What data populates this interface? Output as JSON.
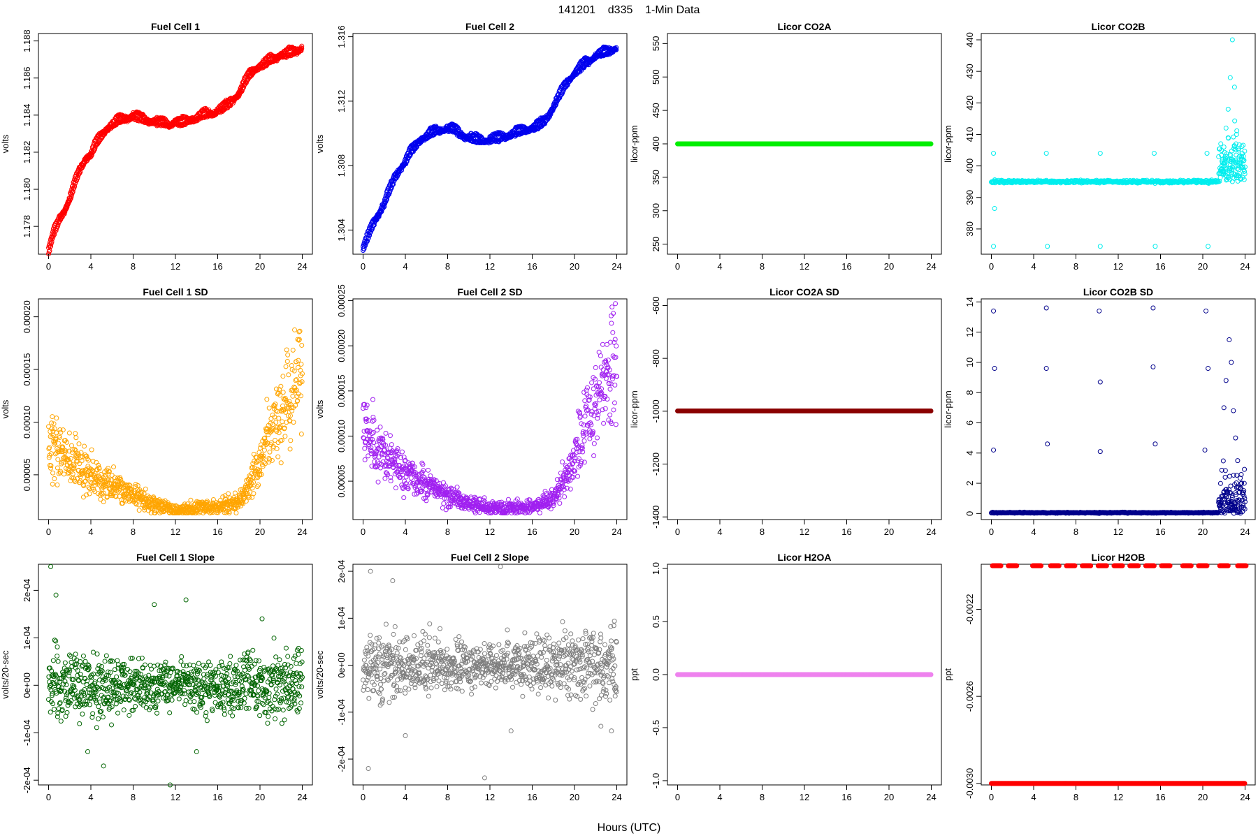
{
  "figure": {
    "suptitle": "141201    d335    1-Min Data",
    "xlabel": "Hours (UTC)"
  },
  "chart_data": [
    {
      "id": "p1",
      "type": "scatter",
      "title": "Fuel Cell 1",
      "xlabel": "",
      "ylabel": "volts",
      "xlim": [
        0,
        24
      ],
      "xticks": [
        0,
        4,
        8,
        12,
        16,
        20,
        24
      ],
      "ylim": [
        1.1765,
        1.1884
      ],
      "yticks": [
        1.178,
        1.18,
        1.182,
        1.184,
        1.186,
        1.188
      ],
      "ytick_labels": [
        "1.178",
        "1.180",
        "1.182",
        "1.184",
        "1.186",
        "1.188"
      ],
      "color": "#ff0000",
      "filled": false,
      "series": [
        {
          "x": [
            0,
            0.5,
            1,
            1.5,
            2,
            2.5,
            3,
            3.5,
            4,
            4.5,
            5,
            5.5,
            6,
            6.5,
            7,
            7.5,
            8,
            8.5,
            9,
            9.5,
            10,
            10.5,
            11,
            11.5,
            12,
            12.5,
            13,
            13.5,
            14,
            14.5,
            15,
            15.5,
            16,
            16.5,
            17,
            17.5,
            18,
            18.5,
            19,
            19.5,
            20,
            20.5,
            21,
            21.5,
            22,
            22.5,
            23,
            23.5,
            24
          ],
          "y": [
            1.1768,
            1.1778,
            1.1785,
            1.179,
            1.1796,
            1.1805,
            1.1812,
            1.1818,
            1.182,
            1.1826,
            1.183,
            1.1834,
            1.1836,
            1.1838,
            1.1839,
            1.184,
            1.1841,
            1.184,
            1.1839,
            1.1838,
            1.1838,
            1.1837,
            1.1837,
            1.1836,
            1.1838,
            1.1837,
            1.1838,
            1.1839,
            1.184,
            1.1841,
            1.1842,
            1.1842,
            1.1844,
            1.1845,
            1.1847,
            1.185,
            1.1853,
            1.1858,
            1.1863,
            1.1866,
            1.1868,
            1.1869,
            1.1871,
            1.1872,
            1.1874,
            1.1874,
            1.1875,
            1.1876,
            1.1878
          ]
        }
      ]
    },
    {
      "id": "p2",
      "type": "scatter",
      "title": "Fuel Cell 2",
      "xlabel": "",
      "ylabel": "volts",
      "xlim": [
        0,
        24
      ],
      "xticks": [
        0,
        4,
        8,
        12,
        16,
        20,
        24
      ],
      "ylim": [
        1.3025,
        1.3162
      ],
      "yticks": [
        1.304,
        1.308,
        1.312,
        1.316
      ],
      "ytick_labels": [
        "1.304",
        "1.308",
        "1.312",
        "1.316"
      ],
      "color": "#0000ee",
      "filled": false,
      "series": [
        {
          "x": [
            0,
            0.5,
            1,
            1.5,
            2,
            2.5,
            3,
            3.5,
            4,
            4.5,
            5,
            5.5,
            6,
            6.5,
            7,
            7.5,
            8,
            8.5,
            9,
            9.5,
            10,
            10.5,
            11,
            11.5,
            12,
            12.5,
            13,
            13.5,
            14,
            14.5,
            15,
            15.5,
            16,
            16.5,
            17,
            17.5,
            18,
            18.5,
            19,
            19.5,
            20,
            20.5,
            21,
            21.5,
            22,
            22.5,
            23,
            23.5,
            24
          ],
          "y": [
            1.303,
            1.3038,
            1.3046,
            1.3052,
            1.3058,
            1.3066,
            1.3074,
            1.308,
            1.3084,
            1.309,
            1.3094,
            1.3098,
            1.31,
            1.3102,
            1.3103,
            1.3104,
            1.3105,
            1.3104,
            1.3102,
            1.31,
            1.3099,
            1.3098,
            1.3097,
            1.3097,
            1.3098,
            1.3098,
            1.3099,
            1.31,
            1.3101,
            1.3102,
            1.3103,
            1.3104,
            1.3105,
            1.3106,
            1.3108,
            1.3112,
            1.3118,
            1.3124,
            1.313,
            1.3135,
            1.3139,
            1.3142,
            1.3145,
            1.3147,
            1.315,
            1.3151,
            1.3152,
            1.3153,
            1.3155
          ]
        }
      ]
    },
    {
      "id": "p3",
      "type": "scatter",
      "title": "Licor CO2A",
      "xlabel": "",
      "ylabel": "licor-ppm",
      "xlim": [
        0,
        24
      ],
      "xticks": [
        0,
        4,
        8,
        12,
        16,
        20,
        24
      ],
      "ylim": [
        235,
        565
      ],
      "yticks": [
        250,
        300,
        350,
        400,
        450,
        500,
        550
      ],
      "ytick_labels": [
        "250",
        "300",
        "350",
        "400",
        "450",
        "500",
        "550"
      ],
      "color": "#00ee00",
      "filled": true,
      "series": [
        {
          "x": [
            0,
            24
          ],
          "y": [
            400,
            400
          ]
        }
      ]
    },
    {
      "id": "p4",
      "type": "scatter",
      "title": "Licor CO2B",
      "xlabel": "",
      "ylabel": "licor-ppm",
      "xlim": [
        0,
        24
      ],
      "xticks": [
        0,
        4,
        8,
        12,
        16,
        20,
        24
      ],
      "ylim": [
        372,
        442
      ],
      "yticks": [
        380,
        390,
        400,
        410,
        420,
        430,
        440
      ],
      "ytick_labels": [
        "380",
        "390",
        "400",
        "410",
        "420",
        "430",
        "440"
      ],
      "color": "#00eeee",
      "filled": false,
      "series": [
        {
          "x": [
            0.2,
            0.2,
            0.3,
            5.2,
            5.3,
            10.3,
            10.3,
            15.4,
            15.5,
            20.4,
            20.5,
            21.8,
            22.0,
            22.2,
            22.4,
            22.6,
            22.8,
            23.0,
            23.2,
            23.4
          ],
          "y": [
            404,
            374.5,
            386.5,
            404,
            374.5,
            404,
            374.5,
            404,
            374.5,
            404,
            374.5,
            400,
            406,
            412,
            418,
            428,
            440,
            425,
            410,
            405
          ]
        }
      ],
      "baseline": 395
    },
    {
      "id": "p5",
      "type": "scatter",
      "title": "Fuel Cell 1 SD",
      "xlabel": "",
      "ylabel": "volts",
      "xlim": [
        0,
        24
      ],
      "xticks": [
        0,
        4,
        8,
        12,
        16,
        20,
        24
      ],
      "ylim": [
        7.5e-06,
        0.000217
      ],
      "yticks": [
        5e-05,
        0.0001,
        0.00015,
        0.0002
      ],
      "ytick_labels": [
        "0.00005",
        "0.00010",
        "0.00015",
        "0.00020"
      ],
      "color": "#ffa500",
      "filled": false,
      "series": [
        {
          "x": [
            0,
            2,
            4,
            6,
            8,
            10,
            12,
            14,
            16,
            18,
            19,
            20,
            21,
            22,
            23,
            24
          ],
          "y": [
            8e-05,
            6.5e-05,
            5e-05,
            4e-05,
            3e-05,
            2.2e-05,
            1.7e-05,
            1.8e-05,
            2e-05,
            2.5e-05,
            4e-05,
            6e-05,
            9e-05,
            0.00011,
            0.00013,
            0.00015
          ]
        }
      ]
    },
    {
      "id": "p6",
      "type": "scatter",
      "title": "Fuel Cell 2 SD",
      "xlabel": "",
      "ylabel": "volts",
      "xlim": [
        0,
        24
      ],
      "xticks": [
        0,
        4,
        8,
        12,
        16,
        20,
        24
      ],
      "ylim": [
        7.5e-06,
        0.000252
      ],
      "yticks": [
        5e-05,
        0.0001,
        0.00015,
        0.0002,
        0.00025
      ],
      "ytick_labels": [
        "0.00005",
        "0.00010",
        "0.00015",
        "0.00020",
        "0.00025"
      ],
      "color": "#a020f0",
      "filled": false,
      "series": [
        {
          "x": [
            0,
            2,
            4,
            6,
            8,
            10,
            12,
            14,
            16,
            18,
            19,
            20,
            21,
            22,
            23,
            24
          ],
          "y": [
            0.00011,
            8e-05,
            6e-05,
            4.5e-05,
            3.5e-05,
            2.5e-05,
            2e-05,
            2e-05,
            2.2e-05,
            3e-05,
            5e-05,
            8e-05,
            0.00011,
            0.00014,
            0.00016,
            0.00018
          ]
        }
      ]
    },
    {
      "id": "p7",
      "type": "scatter",
      "title": "Licor CO2A SD",
      "xlabel": "",
      "ylabel": "licor-ppm",
      "xlim": [
        0,
        24
      ],
      "xticks": [
        0,
        4,
        8,
        12,
        16,
        20,
        24
      ],
      "ylim": [
        -1410,
        -575
      ],
      "yticks": [
        -1400,
        -1200,
        -1000,
        -800,
        -600
      ],
      "ytick_labels": [
        "-1400",
        "-1200",
        "-1000",
        "-800",
        "-600"
      ],
      "color": "#8b0000",
      "filled": true,
      "series": [
        {
          "x": [
            0,
            24
          ],
          "y": [
            -999,
            -999
          ]
        }
      ]
    },
    {
      "id": "p8",
      "type": "scatter",
      "title": "Licor CO2B SD",
      "xlabel": "",
      "ylabel": "licor-ppm",
      "xlim": [
        0,
        24
      ],
      "xticks": [
        0,
        4,
        8,
        12,
        16,
        20,
        24
      ],
      "ylim": [
        -0.4,
        14.2
      ],
      "yticks": [
        0,
        2,
        4,
        6,
        8,
        10,
        12,
        14
      ],
      "ytick_labels": [
        "0",
        "2",
        "4",
        "6",
        "8",
        "10",
        "12",
        "14"
      ],
      "color": "#00008b",
      "filled": false,
      "series": [
        {
          "x": [
            0.2,
            0.3,
            0.2,
            5.2,
            5.2,
            5.3,
            10.2,
            10.3,
            10.3,
            15.3,
            15.3,
            15.5,
            20.3,
            20.5,
            20.2,
            22.0,
            22.2,
            22.5,
            22.7,
            22.9,
            23.1,
            23.3
          ],
          "y": [
            4.2,
            9.6,
            13.4,
            13.6,
            9.6,
            4.6,
            13.4,
            8.7,
            4.1,
            13.6,
            9.7,
            4.6,
            13.4,
            9.6,
            4.2,
            7.0,
            8.8,
            11.5,
            10.0,
            6.8,
            5.0,
            3.5
          ]
        }
      ],
      "baseline": 0.05
    },
    {
      "id": "p9",
      "type": "scatter",
      "title": "Fuel Cell 1 Slope",
      "xlabel": "",
      "ylabel": "volts/20-sec",
      "xlim": [
        0,
        24
      ],
      "xticks": [
        0,
        4,
        8,
        12,
        16,
        20,
        24
      ],
      "ylim": [
        -0.00021,
        0.000255
      ],
      "yticks": [
        -0.0002,
        -0.0001,
        0,
        0.0001,
        0.0002
      ],
      "ytick_labels": [
        "-2e-04",
        "-1e-04",
        "0e+00",
        "1e-04",
        "2e-04"
      ],
      "color": "#006400",
      "filled": false,
      "series": [
        {
          "x": [
            0.2,
            0.7,
            3.7,
            5.2,
            10.0,
            11.5,
            13.0,
            14.0,
            20.2
          ],
          "y": [
            0.00025,
            0.00019,
            -0.00014,
            -0.00017,
            0.00017,
            -0.00021,
            0.00018,
            -0.00014,
            0.00014
          ]
        }
      ],
      "baseline": 0.0
    },
    {
      "id": "p10",
      "type": "scatter",
      "title": "Fuel Cell 2 Slope",
      "xlabel": "",
      "ylabel": "volts/20-sec",
      "xlim": [
        0,
        24
      ],
      "xticks": [
        0,
        4,
        8,
        12,
        16,
        20,
        24
      ],
      "ylim": [
        -0.000255,
        0.000215
      ],
      "yticks": [
        -0.0002,
        -0.0001,
        0,
        0.0001,
        0.0002
      ],
      "ytick_labels": [
        "-2e-04",
        "-1e-04",
        "0e+00",
        "1e-04",
        "2e-04"
      ],
      "color": "#7f7f7f",
      "filled": false,
      "series": [
        {
          "x": [
            0.5,
            0.7,
            2.8,
            4.0,
            11.5,
            13.0,
            14.0,
            22.5,
            23.5
          ],
          "y": [
            -0.00022,
            0.0002,
            0.00018,
            -0.00015,
            -0.00024,
            0.00021,
            -0.00014,
            -0.00013,
            -0.00014
          ]
        }
      ],
      "baseline": 0.0
    },
    {
      "id": "p11",
      "type": "scatter",
      "title": "Licor H2OA",
      "xlabel": "",
      "ylabel": "ppt",
      "xlim": [
        0,
        24
      ],
      "xticks": [
        0,
        4,
        8,
        12,
        16,
        20,
        24
      ],
      "ylim": [
        -1.04,
        1.04
      ],
      "yticks": [
        -1.0,
        -0.5,
        0.0,
        0.5,
        1.0
      ],
      "ytick_labels": [
        "-1.0",
        "-0.5",
        "0.0",
        "0.5",
        "1.0"
      ],
      "color": "#ee82ee",
      "filled": true,
      "series": [
        {
          "x": [
            0,
            24
          ],
          "y": [
            0,
            0
          ]
        }
      ]
    },
    {
      "id": "p12",
      "type": "scatter",
      "title": "Licor H2OB",
      "xlabel": "",
      "ylabel": "ppt",
      "xlim": [
        0,
        24
      ],
      "xticks": [
        0,
        4,
        8,
        12,
        16,
        20,
        24
      ],
      "ylim": [
        -0.003007,
        -0.001993
      ],
      "yticks": [
        -0.003,
        -0.0026,
        -0.0022
      ],
      "ytick_labels": [
        "-0.0030",
        "-0.0026",
        "-0.0022"
      ],
      "color": "#ff0000",
      "filled": false,
      "series": [
        {
          "x": [
            0,
            24
          ],
          "y": [
            -0.003,
            -0.003
          ]
        },
        {
          "x": [
            0.5,
            2.0,
            4.3,
            6.0,
            7.5,
            9.0,
            10.5,
            12.0,
            13.5,
            15.0,
            16.5,
            18.5,
            20.0,
            22.0,
            23.7
          ],
          "y": [
            -0.002,
            -0.002,
            -0.002,
            -0.002,
            -0.002,
            -0.002,
            -0.002,
            -0.002,
            -0.002,
            -0.002,
            -0.002,
            -0.002,
            -0.002,
            -0.002,
            -0.002
          ]
        }
      ]
    }
  ]
}
